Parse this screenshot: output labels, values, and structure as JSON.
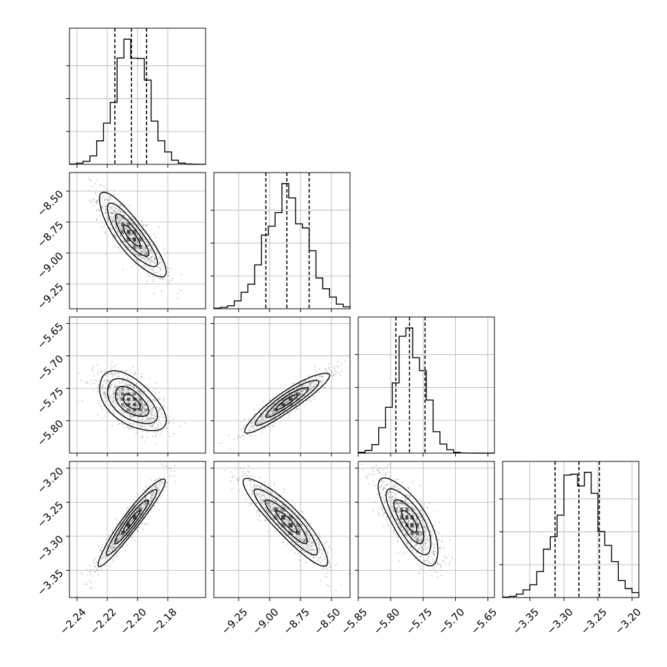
{
  "chart_data": {
    "type": "corner",
    "n_params": 4,
    "grid": true,
    "colors": {
      "line": "#000000",
      "grid": "#b0b0b0",
      "scatter": "#808080",
      "background": "#ffffff"
    },
    "params": [
      {
        "range": [
          -2.245,
          -2.155
        ],
        "ticks": [
          -2.24,
          -2.22,
          -2.2,
          -2.18
        ],
        "tick_labels": [
          "−2.24",
          "−2.22",
          "−2.20",
          "−2.18"
        ],
        "quantiles": [
          -2.215,
          -2.204,
          -2.194
        ],
        "mean": -2.204,
        "sd": 0.011
      },
      {
        "range": [
          -9.45,
          -8.35
        ],
        "ticks": [
          -9.25,
          -9.0,
          -8.75,
          -8.5
        ],
        "tick_labels": [
          "−9.25",
          "−9.00",
          "−8.75",
          "−8.50"
        ],
        "quantiles": [
          -9.03,
          -8.86,
          -8.68
        ],
        "mean": -8.86,
        "sd": 0.17
      },
      {
        "range": [
          -5.85,
          -5.64
        ],
        "ticks": [
          -5.85,
          -5.8,
          -5.75,
          -5.7,
          -5.65
        ],
        "tick_labels": [
          "−5.85",
          "−5.80",
          "−5.75",
          "−5.70",
          "−5.65"
        ],
        "y_ticks": [
          -5.8,
          -5.75,
          -5.7,
          -5.65
        ],
        "y_tick_labels": [
          "−5.80",
          "−5.75",
          "−5.70",
          "−5.65"
        ],
        "quantiles": [
          -5.792,
          -5.771,
          -5.747
        ],
        "mean": -5.771,
        "sd": 0.023
      },
      {
        "range": [
          -3.39,
          -3.19
        ],
        "ticks": [
          -3.35,
          -3.3,
          -3.25,
          -3.2
        ],
        "tick_labels": [
          "−3.35",
          "−3.30",
          "−3.25",
          "−3.20"
        ],
        "quantiles": [
          -3.313,
          -3.278,
          -3.248
        ],
        "mean": -3.278,
        "sd": 0.032
      }
    ],
    "correlations": [
      [
        1.0,
        -0.85,
        -0.55,
        0.95
      ],
      [
        -0.85,
        1.0,
        0.92,
        -0.9
      ],
      [
        -0.55,
        0.92,
        1.0,
        -0.75
      ],
      [
        0.95,
        -0.9,
        -0.75,
        1.0
      ]
    ],
    "hist_bins": 20,
    "contour_levels_sigma": [
      0.5,
      1.0,
      1.5,
      2.0
    ],
    "n_scatter_points": 900
  }
}
